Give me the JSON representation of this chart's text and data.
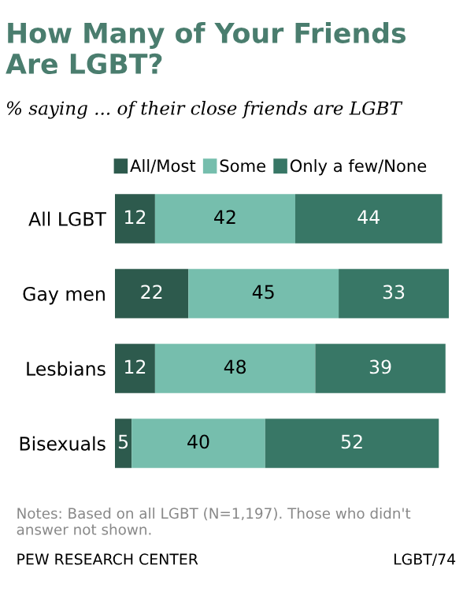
{
  "chart_data": {
    "type": "bar",
    "orientation": "horizontal",
    "stacked": true,
    "data_labels": true,
    "grid": false,
    "legend": "top left",
    "tick_labels": "y",
    "title": "How Many of Your Friends Are LGBT?",
    "subtitle": "% saying ... of their close friends are LGBT",
    "categories": [
      "All LGBT",
      "Gay men",
      "Lesbians",
      "Bisexuals"
    ],
    "series": [
      {
        "name": "All/Most",
        "color": "#2d5a4d",
        "values": [
          12,
          22,
          12,
          5
        ]
      },
      {
        "name": "Some",
        "color": "#76bead",
        "values": [
          42,
          45,
          48,
          40
        ]
      },
      {
        "name": "Only a few/None",
        "color": "#387766",
        "values": [
          44,
          33,
          39,
          52
        ]
      }
    ],
    "annotations": [
      "Notes: Based on all LGBT (N=1,197). Those who didn't answer not shown.",
      "PEW RESEARCH CENTER",
      "LGBT/74"
    ]
  }
}
